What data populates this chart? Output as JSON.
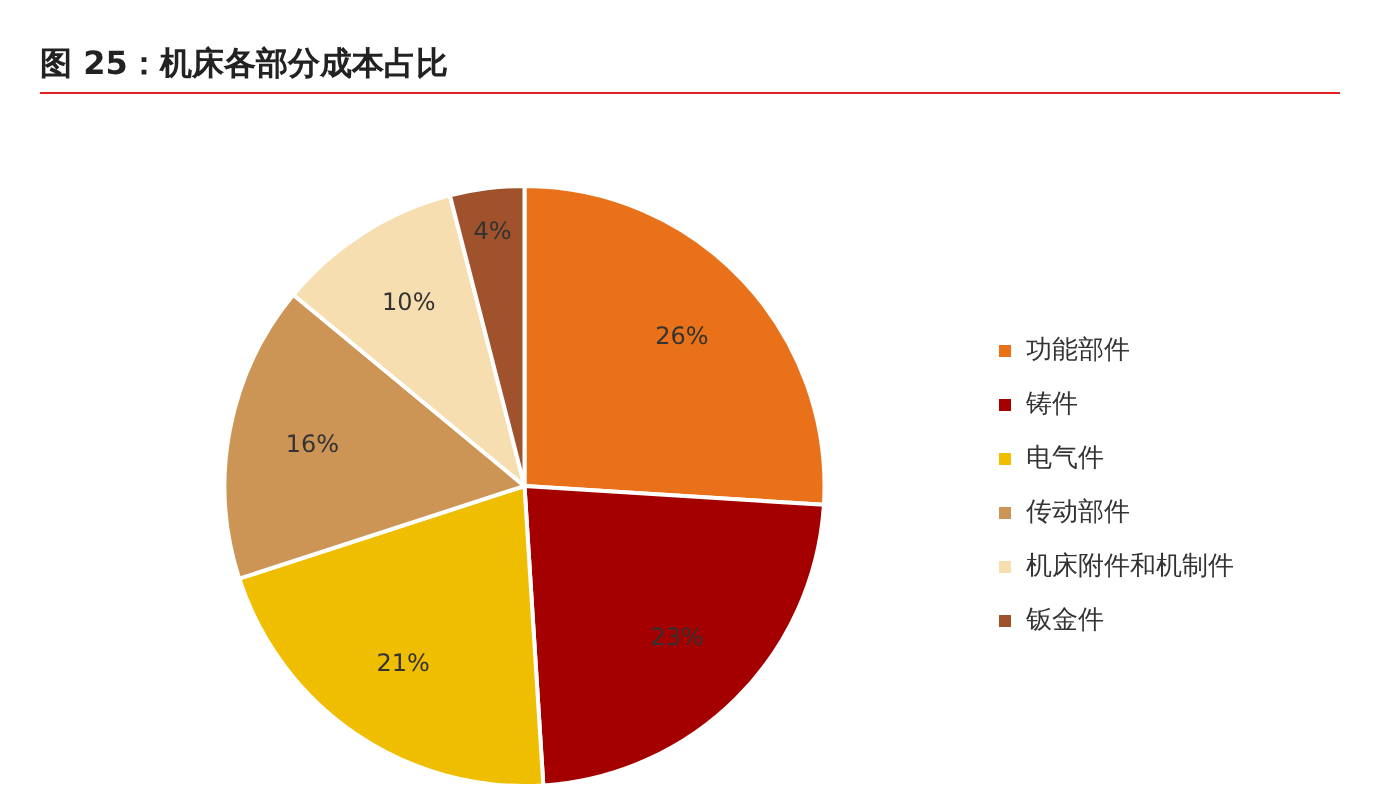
{
  "chart_data": {
    "type": "pie",
    "title": "图 25：机床各部分成本占比",
    "categories": [
      "功能部件",
      "铸件",
      "电气件",
      "传动部件",
      "机床附件和机制件",
      "钣金件"
    ],
    "values": [
      26,
      23,
      21,
      16,
      10,
      4
    ],
    "value_labels": [
      "26%",
      "23%",
      "21%",
      "16%",
      "10%",
      "4%"
    ],
    "colors": [
      "#e8711a",
      "#a50000",
      "#f0be00",
      "#cc9556",
      "#f7deb0",
      "#a0522d"
    ],
    "legend": "right"
  }
}
